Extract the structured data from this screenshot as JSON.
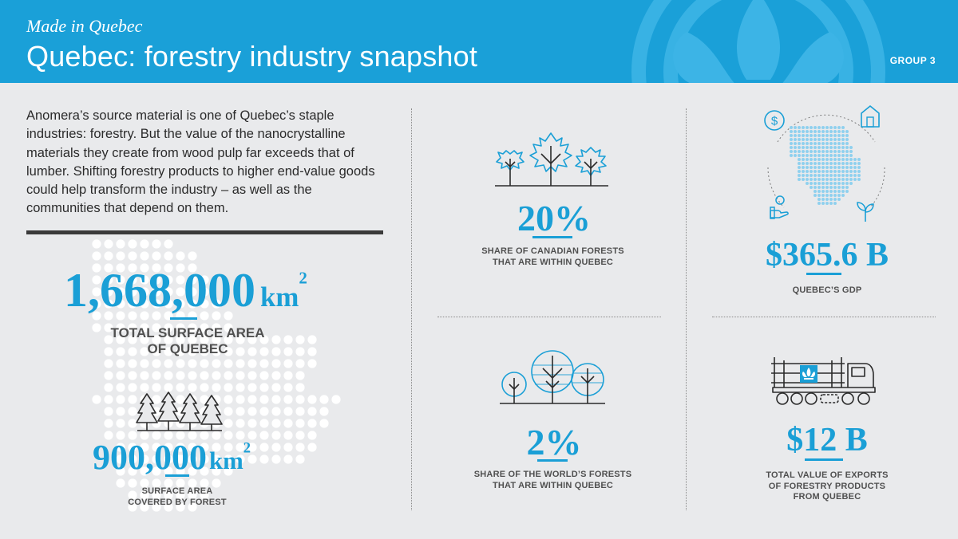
{
  "header": {
    "kicker": "Made in Quebec",
    "title": "Quebec: forestry industry snapshot",
    "group": "GROUP 3",
    "background_color": "#1aa0d8"
  },
  "intro": {
    "text": "Anomera’s source material is one of Quebec’s staple industries: forestry. But the value of the nanocrystalline materials they create from wood pulp far exceeds that of lumber. Shifting forestry products to higher end-value goods could help transform the industry – as well as the communities that depend on them."
  },
  "stats": {
    "surface_area": {
      "value": "1,668,000",
      "unit": "km",
      "exponent": "2",
      "label_line1": "TOTAL SURFACE AREA",
      "label_line2": "OF QUEBEC"
    },
    "forest_area": {
      "value": "900,000",
      "unit": "km",
      "exponent": "2",
      "label_line1": "SURFACE AREA",
      "label_line2": "COVERED BY FOREST"
    },
    "canadian_share": {
      "value": "20%",
      "label_line1": "SHARE OF CANADIAN FORESTS",
      "label_line2": "THAT ARE WITHIN QUEBEC"
    },
    "world_share": {
      "value": "2%",
      "label_line1": "SHARE OF THE WORLD’S FORESTS",
      "label_line2": "THAT ARE WITHIN QUEBEC"
    },
    "gdp": {
      "value": "$365.6 B",
      "label_line1": "QUEBEC’S GDP"
    },
    "exports": {
      "value": "$12 B",
      "label_line1": "TOTAL VALUE OF EXPORTS",
      "label_line2": "OF FORESTRY PRODUCTS",
      "label_line3": "FROM QUEBEC"
    }
  },
  "icons": {
    "maple_trees": "maple-trees-icon",
    "round_trees": "round-trees-icon",
    "quebec_map": "quebec-map-icon",
    "dollar": "dollar-icon",
    "house": "house-icon",
    "hand": "hand-icon",
    "sprout": "sprout-icon",
    "pine_trees": "pine-trees-icon",
    "logging_truck": "logging-truck-icon"
  },
  "colors": {
    "accent": "#1a9fd6",
    "text": "#2b2b2b",
    "label": "#505050",
    "background": "#e9eaec"
  }
}
